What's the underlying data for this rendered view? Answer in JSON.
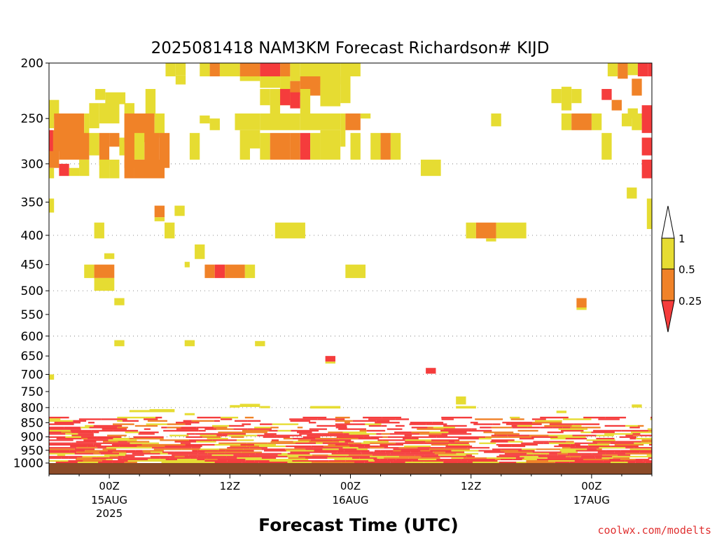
{
  "chart_data": {
    "type": "heatmap",
    "title": "2025081418 NAM3KM Forecast Richardson# KIJD",
    "xlabel": "Forecast Time (UTC)",
    "ylabel": "",
    "y_scale": "log",
    "y_reversed": true,
    "ylim": [
      1000,
      200
    ],
    "y_ticks": [
      200,
      250,
      300,
      350,
      400,
      450,
      500,
      550,
      600,
      650,
      700,
      750,
      800,
      850,
      900,
      950,
      1000
    ],
    "y_tick_labels": [
      "200",
      "250",
      "300",
      "350",
      "400",
      "450",
      "500",
      "550",
      "600",
      "650",
      "700",
      "750",
      "800",
      "850",
      "900",
      "950",
      "1000"
    ],
    "dotted_gridlines_at": [
      300,
      400,
      500,
      600,
      700,
      800,
      900
    ],
    "x_units": "hours since 2025-08-14 18Z",
    "xlim": [
      0,
      60
    ],
    "x_ticks": [
      {
        "x": 6,
        "label": "00Z",
        "date": "15AUG",
        "year": "2025"
      },
      {
        "x": 18,
        "label": "12Z",
        "date": "",
        "year": ""
      },
      {
        "x": 30,
        "label": "00Z",
        "date": "16AUG",
        "year": ""
      },
      {
        "x": 42,
        "label": "12Z",
        "date": "",
        "year": ""
      },
      {
        "x": 54,
        "label": "00Z",
        "date": "17AUG",
        "year": ""
      }
    ],
    "colorbar": {
      "levels": [
        "0.25",
        "0.5",
        "1"
      ],
      "bins": [
        {
          "range": "< 0.25",
          "color": "#f53c3c"
        },
        {
          "range": "0.25 - 0.5",
          "color": "#f08228"
        },
        {
          "range": "0.5 - 1",
          "color": "#e6dc32"
        },
        {
          "range": "> 1",
          "color": "#ffffff"
        }
      ]
    },
    "colors": {
      "lt025": "#f53c3c",
      "r025_05": "#f08228",
      "r05_1": "#e6dc32",
      "surface": "#8c4b28"
    },
    "cells_legend": "each cell = [x_start_hour, x_end_hour, p_top_hPa, p_bottom_hPa, bin] where bin 0 = <0.25, 1 = 0.25-0.5, 2 = 0.5-1",
    "cells": [
      [
        11.6,
        12.6,
        200,
        211,
        2
      ],
      [
        12.6,
        13.6,
        200,
        210,
        2
      ],
      [
        15.0,
        16.0,
        200,
        211,
        2
      ],
      [
        16.0,
        17.0,
        200,
        211,
        1
      ],
      [
        17.0,
        19.0,
        200,
        211,
        2
      ],
      [
        19.0,
        21.0,
        200,
        211,
        1
      ],
      [
        21.0,
        23.0,
        200,
        211,
        0
      ],
      [
        23.0,
        24.0,
        200,
        211,
        1
      ],
      [
        24.0,
        25.0,
        200,
        215,
        2
      ],
      [
        25.0,
        29.0,
        200,
        218,
        2
      ],
      [
        29.0,
        31.0,
        200,
        211,
        2
      ],
      [
        55.6,
        56.6,
        200,
        211,
        2
      ],
      [
        56.6,
        57.6,
        200,
        213,
        1
      ],
      [
        57.6,
        58.6,
        200,
        210,
        2
      ],
      [
        58.6,
        59.6,
        200,
        211,
        0
      ],
      [
        59.6,
        60.0,
        200,
        211,
        0
      ],
      [
        12.6,
        13.6,
        210,
        218,
        2
      ],
      [
        19.0,
        21.0,
        211,
        215,
        2
      ],
      [
        21.0,
        23.0,
        211,
        221,
        2
      ],
      [
        23.0,
        24.0,
        211,
        237,
        2
      ],
      [
        24.0,
        25.0,
        215,
        228,
        1
      ],
      [
        25.0,
        27.0,
        211,
        228,
        1
      ],
      [
        27.0,
        29.0,
        211,
        238,
        2
      ],
      [
        29.0,
        30.0,
        211,
        235,
        2
      ],
      [
        58.0,
        59.0,
        213,
        228,
        1
      ],
      [
        4.6,
        5.6,
        222,
        232,
        2
      ],
      [
        5.6,
        7.6,
        225,
        236,
        2
      ],
      [
        9.6,
        10.6,
        222,
        248,
        2
      ],
      [
        21.0,
        22.0,
        222,
        237,
        2
      ],
      [
        22.0,
        23.0,
        222,
        250,
        2
      ],
      [
        23.0,
        24.0,
        222,
        237,
        0
      ],
      [
        24.0,
        25.0,
        225,
        240,
        0
      ],
      [
        25.0,
        26.0,
        222,
        248,
        2
      ],
      [
        50.0,
        51.0,
        222,
        235,
        2
      ],
      [
        51.0,
        52.0,
        220,
        242,
        2
      ],
      [
        52.0,
        53.0,
        222,
        235,
        2
      ],
      [
        55.0,
        56.0,
        222,
        232,
        0
      ],
      [
        0.0,
        1.0,
        232,
        250,
        2
      ],
      [
        4.0,
        5.0,
        235,
        260,
        2
      ],
      [
        5.0,
        7.0,
        235,
        255,
        2
      ],
      [
        7.5,
        8.5,
        235,
        290,
        2
      ],
      [
        56.0,
        57.0,
        232,
        242,
        1
      ],
      [
        57.6,
        58.6,
        240,
        250,
        2
      ],
      [
        59.0,
        60.0,
        237,
        250,
        0
      ],
      [
        0.0,
        0.5,
        245,
        260,
        2
      ],
      [
        0.5,
        3.5,
        245,
        285,
        1
      ],
      [
        3.5,
        4.0,
        245,
        285,
        2
      ],
      [
        7.5,
        10.5,
        245,
        275,
        1
      ],
      [
        10.5,
        11.5,
        245,
        270,
        2
      ],
      [
        15.0,
        16.0,
        247,
        255,
        2
      ],
      [
        16.0,
        17.0,
        250,
        262,
        2
      ],
      [
        18.5,
        21.0,
        245,
        262,
        2
      ],
      [
        21.0,
        25.0,
        245,
        262,
        2
      ],
      [
        25.0,
        29.0,
        245,
        262,
        2
      ],
      [
        29.0,
        29.5,
        245,
        280,
        2
      ],
      [
        29.5,
        31.0,
        245,
        262,
        1
      ],
      [
        31.0,
        32.0,
        245,
        250,
        2
      ],
      [
        44.0,
        45.0,
        245,
        258,
        2
      ],
      [
        51.0,
        52.0,
        245,
        262,
        2
      ],
      [
        52.0,
        54.0,
        245,
        262,
        1
      ],
      [
        54.0,
        55.0,
        245,
        262,
        2
      ],
      [
        57.0,
        58.0,
        245,
        258,
        2
      ],
      [
        58.0,
        59.0,
        245,
        262,
        2
      ],
      [
        59.0,
        60.0,
        245,
        265,
        0
      ],
      [
        0.0,
        1.0,
        262,
        305,
        1
      ],
      [
        0.0,
        0.4,
        262,
        285,
        0
      ],
      [
        1.0,
        4.0,
        265,
        295,
        1
      ],
      [
        4.0,
        5.0,
        265,
        290,
        2
      ],
      [
        5.0,
        6.0,
        265,
        302,
        1
      ],
      [
        6.0,
        7.0,
        265,
        280,
        1
      ],
      [
        7.0,
        7.5,
        270,
        290,
        2
      ],
      [
        7.5,
        8.5,
        265,
        305,
        1
      ],
      [
        8.5,
        9.5,
        265,
        295,
        2
      ],
      [
        9.5,
        11.0,
        265,
        305,
        1
      ],
      [
        11.0,
        12.0,
        265,
        305,
        1
      ],
      [
        14.0,
        15.0,
        265,
        295,
        2
      ],
      [
        19.0,
        20.0,
        262,
        295,
        2
      ],
      [
        20.0,
        21.0,
        262,
        282,
        2
      ],
      [
        21.0,
        22.0,
        265,
        295,
        2
      ],
      [
        22.0,
        24.0,
        265,
        295,
        1
      ],
      [
        24.0,
        25.0,
        265,
        295,
        1
      ],
      [
        25.0,
        26.0,
        265,
        295,
        0
      ],
      [
        26.0,
        27.0,
        265,
        295,
        2
      ],
      [
        27.0,
        29.0,
        262,
        295,
        2
      ],
      [
        30.0,
        31.0,
        265,
        295,
        2
      ],
      [
        32.0,
        33.0,
        265,
        295,
        2
      ],
      [
        33.0,
        34.0,
        265,
        295,
        1
      ],
      [
        34.0,
        35.0,
        265,
        295,
        2
      ],
      [
        55.0,
        56.0,
        265,
        295,
        2
      ],
      [
        59.0,
        60.0,
        270,
        290,
        0
      ],
      [
        1.0,
        2.0,
        300,
        315,
        0
      ],
      [
        2.0,
        3.0,
        305,
        315,
        2
      ],
      [
        3.0,
        4.0,
        295,
        315,
        2
      ],
      [
        5.0,
        6.0,
        295,
        318,
        2
      ],
      [
        6.0,
        7.0,
        295,
        318,
        2
      ],
      [
        7.5,
        8.5,
        295,
        318,
        1
      ],
      [
        8.5,
        11.5,
        295,
        318,
        1
      ],
      [
        37.0,
        39.0,
        295,
        315,
        2
      ],
      [
        59.0,
        60.0,
        295,
        318,
        0
      ],
      [
        0.0,
        0.5,
        305,
        318,
        2
      ],
      [
        57.5,
        58.5,
        330,
        345,
        2
      ],
      [
        59.5,
        60.0,
        345,
        390,
        2
      ],
      [
        0.0,
        0.5,
        345,
        365,
        2
      ],
      [
        10.5,
        11.5,
        355,
        372,
        1
      ],
      [
        12.5,
        13.5,
        355,
        370,
        2
      ],
      [
        10.5,
        11.5,
        372,
        378,
        2
      ],
      [
        4.5,
        5.5,
        380,
        405,
        2
      ],
      [
        11.5,
        12.5,
        380,
        405,
        2
      ],
      [
        22.5,
        25.5,
        380,
        405,
        2
      ],
      [
        41.5,
        42.5,
        380,
        405,
        2
      ],
      [
        42.5,
        44.5,
        380,
        405,
        1
      ],
      [
        44.5,
        47.5,
        380,
        405,
        2
      ],
      [
        43.5,
        44.5,
        405,
        410,
        2
      ],
      [
        14.5,
        15.5,
        415,
        440,
        2
      ],
      [
        13.5,
        14.0,
        445,
        455,
        2
      ],
      [
        3.5,
        4.5,
        450,
        475,
        2
      ],
      [
        4.5,
        6.5,
        450,
        475,
        1
      ],
      [
        15.5,
        16.5,
        450,
        475,
        1
      ],
      [
        16.5,
        17.5,
        450,
        475,
        0
      ],
      [
        17.5,
        19.5,
        450,
        475,
        1
      ],
      [
        19.5,
        20.5,
        450,
        475,
        2
      ],
      [
        29.5,
        31.5,
        450,
        475,
        2
      ],
      [
        4.5,
        6.5,
        475,
        500,
        2
      ],
      [
        5.5,
        6.5,
        430,
        440,
        2
      ],
      [
        6.5,
        7.5,
        515,
        530,
        2
      ],
      [
        52.5,
        53.5,
        515,
        535,
        1
      ],
      [
        52.5,
        53.5,
        535,
        540,
        2
      ],
      [
        6.5,
        7.5,
        610,
        625,
        2
      ],
      [
        13.5,
        14.5,
        610,
        625,
        2
      ],
      [
        20.5,
        21.5,
        612,
        625,
        2
      ],
      [
        27.5,
        28.5,
        650,
        665,
        0
      ],
      [
        27.5,
        28.5,
        665,
        670,
        2
      ],
      [
        37.5,
        38.5,
        682,
        698,
        0
      ],
      [
        0.0,
        0.5,
        700,
        715,
        2
      ],
      [
        40.5,
        41.5,
        765,
        790,
        2
      ],
      [
        58.0,
        59.0,
        790,
        800,
        2
      ],
      [
        19.0,
        21.0,
        788,
        798,
        2
      ],
      [
        18.0,
        19.0,
        792,
        800,
        2
      ],
      [
        21.0,
        22.0,
        795,
        802,
        2
      ],
      [
        26.0,
        29.0,
        795,
        803,
        2
      ],
      [
        40.5,
        42.5,
        795,
        803,
        2
      ],
      [
        8.0,
        10.0,
        808,
        815,
        2
      ],
      [
        10.0,
        12.5,
        805,
        815,
        2
      ],
      [
        13.5,
        14.5,
        818,
        825,
        2
      ],
      [
        50.5,
        51.5,
        810,
        818,
        2
      ]
    ],
    "low_level_band": {
      "p_top": 830,
      "p_bottom": 1000,
      "description": "dense mixed <0.25 / 0.25-0.5 / 0.5-1 layers near surface"
    }
  },
  "watermark": "coolwx.com/modelts"
}
